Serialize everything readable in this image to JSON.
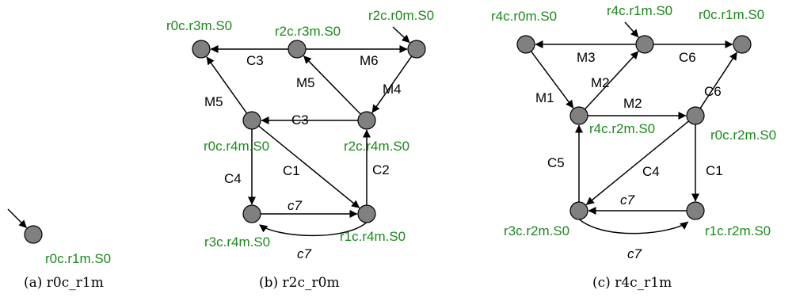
{
  "colors": {
    "node_fill": "#808080",
    "node_stroke": "#000000",
    "node_label": "#1a8a1a",
    "edge": "#000000"
  },
  "panels": [
    {
      "id": "a",
      "caption": "(a) r0c_r1m",
      "nodes": [
        {
          "id": "r0c.r1m.S0",
          "label": "r0c.r1m.S0",
          "initial": true
        }
      ],
      "edges": []
    },
    {
      "id": "b",
      "caption": "(b) r2c_r0m",
      "nodes": [
        {
          "id": "r0c.r3m.S0",
          "label": "r0c.r3m.S0"
        },
        {
          "id": "r2c.r3m.S0",
          "label": "r2c.r3m.S0"
        },
        {
          "id": "r2c.r0m.S0",
          "label": "r2c.r0m.S0",
          "initial": true
        },
        {
          "id": "r0c.r4m.S0",
          "label": "r0c.r4m.S0"
        },
        {
          "id": "r2c.r4m.S0",
          "label": "r2c.r4m.S0"
        },
        {
          "id": "r3c.r4m.S0",
          "label": "r3c.r4m.S0"
        },
        {
          "id": "r1c.r4m.S0",
          "label": "r1c.r4m.S0"
        }
      ],
      "edges": [
        {
          "from": "r2c.r3m.S0",
          "to": "r0c.r3m.S0",
          "label": "C3"
        },
        {
          "from": "r2c.r3m.S0",
          "to": "r2c.r0m.S0",
          "label": "M6"
        },
        {
          "from": "r0c.r4m.S0",
          "to": "r0c.r3m.S0",
          "label": "M5"
        },
        {
          "from": "r2c.r4m.S0",
          "to": "r2c.r3m.S0",
          "label": "M5"
        },
        {
          "from": "r2c.r0m.S0",
          "to": "r2c.r4m.S0",
          "label": "M4"
        },
        {
          "from": "r2c.r4m.S0",
          "to": "r0c.r4m.S0",
          "label": "C3"
        },
        {
          "from": "r0c.r4m.S0",
          "to": "r3c.r4m.S0",
          "label": "C4"
        },
        {
          "from": "r0c.r4m.S0",
          "to": "r1c.r4m.S0",
          "label": "C1"
        },
        {
          "from": "r1c.r4m.S0",
          "to": "r2c.r4m.S0",
          "label": "C2"
        },
        {
          "from": "r3c.r4m.S0",
          "to": "r1c.r4m.S0",
          "label": "c7",
          "italic": true
        },
        {
          "from": "r1c.r4m.S0",
          "to": "r3c.r4m.S0",
          "label": "c7",
          "italic": true,
          "curved": true
        }
      ]
    },
    {
      "id": "c",
      "caption": "(c) r4c_r1m",
      "nodes": [
        {
          "id": "r4c.r0m.S0",
          "label": "r4c.r0m.S0"
        },
        {
          "id": "r4c.r1m.S0",
          "label": "r4c.r1m.S0",
          "initial": true
        },
        {
          "id": "r0c.r1m.S0",
          "label": "r0c.r1m.S0"
        },
        {
          "id": "r4c.r2m.S0",
          "label": "r4c.r2m.S0"
        },
        {
          "id": "r0c.r2m.S0",
          "label": "r0c.r2m.S0"
        },
        {
          "id": "r3c.r2m.S0",
          "label": "r3c.r2m.S0"
        },
        {
          "id": "r1c.r2m.S0",
          "label": "r1c.r2m.S0"
        }
      ],
      "edges": [
        {
          "from": "r4c.r1m.S0",
          "to": "r4c.r0m.S0",
          "label": "M3"
        },
        {
          "from": "r4c.r1m.S0",
          "to": "r0c.r1m.S0",
          "label": "C6"
        },
        {
          "from": "r4c.r0m.S0",
          "to": "r4c.r2m.S0",
          "label": "M1"
        },
        {
          "from": "r4c.r2m.S0",
          "to": "r4c.r1m.S0",
          "label": "M2"
        },
        {
          "from": "r4c.r2m.S0",
          "to": "r0c.r2m.S0",
          "label": "C6"
        },
        {
          "from": "r0c.r2m.S0",
          "to": "r0c.r1m.S0",
          "label": "M2"
        },
        {
          "from": "r0c.r2m.S0",
          "to": "r3c.r2m.S0",
          "label": "C4"
        },
        {
          "from": "r0c.r2m.S0",
          "to": "r1c.r2m.S0",
          "label": "C1"
        },
        {
          "from": "r3c.r2m.S0",
          "to": "r4c.r2m.S0",
          "label": "C5"
        },
        {
          "from": "r1c.r2m.S0",
          "to": "r3c.r2m.S0",
          "label": "c7",
          "italic": true
        },
        {
          "from": "r3c.r2m.S0",
          "to": "r1c.r2m.S0",
          "label": "c7",
          "italic": true,
          "curved": true
        }
      ]
    }
  ]
}
